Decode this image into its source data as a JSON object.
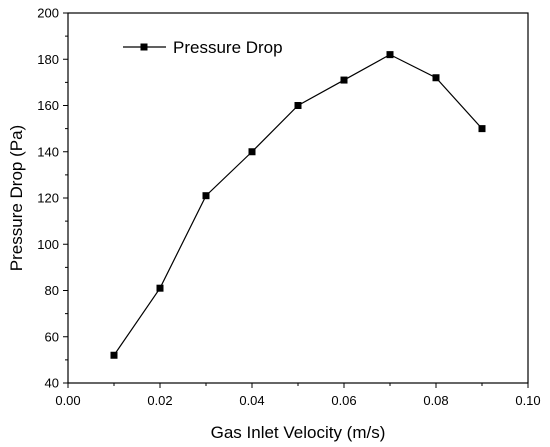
{
  "chart_data": {
    "type": "line",
    "xlabel": "Gas Inlet Velocity (m/s)",
    "ylabel": "Pressure Drop (Pa)",
    "xlim": [
      0.0,
      0.1
    ],
    "ylim": [
      40,
      200
    ],
    "x_ticks": [
      "0.00",
      "0.02",
      "0.04",
      "0.06",
      "0.08",
      "0.10"
    ],
    "y_ticks": [
      "40",
      "60",
      "80",
      "100",
      "120",
      "140",
      "160",
      "180",
      "200"
    ],
    "legend_position": "top-left",
    "grid": false,
    "series": [
      {
        "name": "Pressure Drop",
        "color": "#000000",
        "marker": "square",
        "x": [
          0.01,
          0.02,
          0.03,
          0.04,
          0.05,
          0.06,
          0.07,
          0.08,
          0.09
        ],
        "y": [
          52,
          81,
          121,
          140,
          160,
          171,
          182,
          172,
          150
        ]
      }
    ]
  }
}
